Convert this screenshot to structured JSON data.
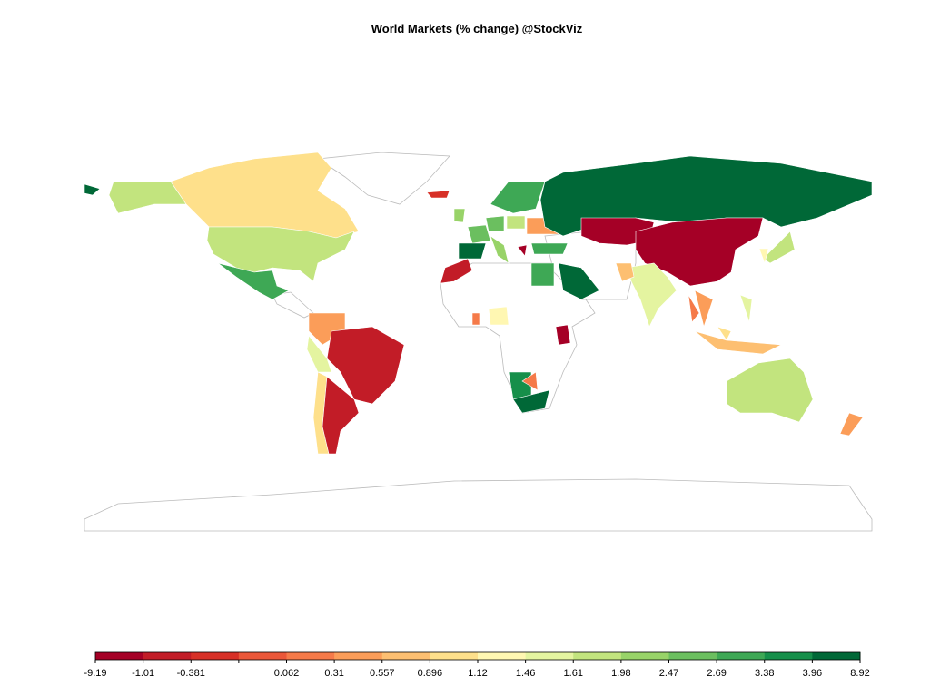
{
  "title": "World Markets (% change) @StockViz",
  "legend": {
    "breaks": [
      -9.19,
      -1.01,
      -0.381,
      null,
      0.062,
      0.31,
      0.557,
      0.896,
      1.12,
      1.46,
      1.61,
      1.98,
      2.47,
      2.69,
      3.38,
      3.96,
      8.92
    ],
    "colors": [
      "#a50026",
      "#c21c27",
      "#d73027",
      "#ea5739",
      "#f57a49",
      "#fb9d59",
      "#fdbf71",
      "#fee08b",
      "#fff7b2",
      "#e4f4a0",
      "#c2e47e",
      "#98d368",
      "#6bbf5f",
      "#3ea855",
      "#168f4a",
      "#006837"
    ]
  }
}
